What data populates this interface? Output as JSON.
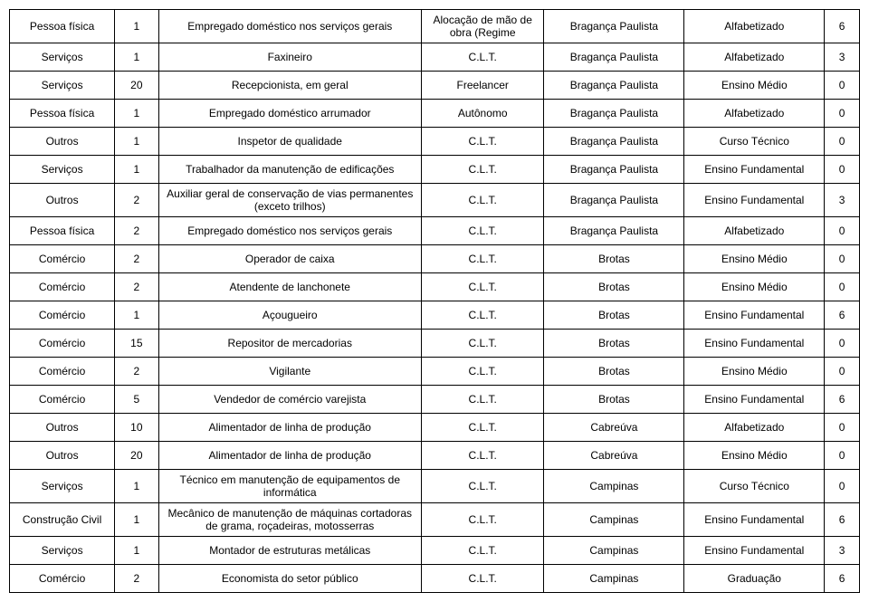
{
  "rows": [
    {
      "c0": "Pessoa física",
      "c1": "1",
      "c2": "Empregado doméstico nos serviços gerais",
      "c3": "Alocação de mão de obra (Regime",
      "c4": "Bragança Paulista",
      "c5": "Alfabetizado",
      "c6": "6"
    },
    {
      "c0": "Serviços",
      "c1": "1",
      "c2": "Faxineiro",
      "c3": "C.L.T.",
      "c4": "Bragança Paulista",
      "c5": "Alfabetizado",
      "c6": "3"
    },
    {
      "c0": "Serviços",
      "c1": "20",
      "c2": "Recepcionista, em geral",
      "c3": "Freelancer",
      "c4": "Bragança Paulista",
      "c5": "Ensino Médio",
      "c6": "0"
    },
    {
      "c0": "Pessoa física",
      "c1": "1",
      "c2": "Empregado doméstico arrumador",
      "c3": "Autônomo",
      "c4": "Bragança Paulista",
      "c5": "Alfabetizado",
      "c6": "0"
    },
    {
      "c0": "Outros",
      "c1": "1",
      "c2": "Inspetor de qualidade",
      "c3": "C.L.T.",
      "c4": "Bragança Paulista",
      "c5": "Curso Técnico",
      "c6": "0"
    },
    {
      "c0": "Serviços",
      "c1": "1",
      "c2": "Trabalhador da manutenção de edificações",
      "c3": "C.L.T.",
      "c4": "Bragança Paulista",
      "c5": "Ensino Fundamental",
      "c6": "0"
    },
    {
      "c0": "Outros",
      "c1": "2",
      "c2": "Auxiliar geral de conservação de vias permanentes (exceto trilhos)",
      "c3": "C.L.T.",
      "c4": "Bragança Paulista",
      "c5": "Ensino Fundamental",
      "c6": "3"
    },
    {
      "c0": "Pessoa física",
      "c1": "2",
      "c2": "Empregado doméstico nos serviços gerais",
      "c3": "C.L.T.",
      "c4": "Bragança Paulista",
      "c5": "Alfabetizado",
      "c6": "0"
    },
    {
      "c0": "Comércio",
      "c1": "2",
      "c2": "Operador de caixa",
      "c3": "C.L.T.",
      "c4": "Brotas",
      "c5": "Ensino Médio",
      "c6": "0"
    },
    {
      "c0": "Comércio",
      "c1": "2",
      "c2": "Atendente de lanchonete",
      "c3": "C.L.T.",
      "c4": "Brotas",
      "c5": "Ensino Médio",
      "c6": "0"
    },
    {
      "c0": "Comércio",
      "c1": "1",
      "c2": "Açougueiro",
      "c3": "C.L.T.",
      "c4": "Brotas",
      "c5": "Ensino Fundamental",
      "c6": "6"
    },
    {
      "c0": "Comércio",
      "c1": "15",
      "c2": "Repositor de mercadorias",
      "c3": "C.L.T.",
      "c4": "Brotas",
      "c5": "Ensino Fundamental",
      "c6": "0"
    },
    {
      "c0": "Comércio",
      "c1": "2",
      "c2": "Vigilante",
      "c3": "C.L.T.",
      "c4": "Brotas",
      "c5": "Ensino Médio",
      "c6": "0"
    },
    {
      "c0": "Comércio",
      "c1": "5",
      "c2": "Vendedor de comércio varejista",
      "c3": "C.L.T.",
      "c4": "Brotas",
      "c5": "Ensino Fundamental",
      "c6": "6"
    },
    {
      "c0": "Outros",
      "c1": "10",
      "c2": "Alimentador de linha de produção",
      "c3": "C.L.T.",
      "c4": "Cabreúva",
      "c5": "Alfabetizado",
      "c6": "0"
    },
    {
      "c0": "Outros",
      "c1": "20",
      "c2": "Alimentador de linha de produção",
      "c3": "C.L.T.",
      "c4": "Cabreúva",
      "c5": "Ensino Médio",
      "c6": "0"
    },
    {
      "c0": "Serviços",
      "c1": "1",
      "c2": "Técnico em manutenção de equipamentos de informática",
      "c3": "C.L.T.",
      "c4": "Campinas",
      "c5": "Curso Técnico",
      "c6": "0"
    },
    {
      "c0": "Construção Civil",
      "c1": "1",
      "c2": "Mecânico de manutenção de máquinas cortadoras de grama, roçadeiras, motosserras",
      "c3": "C.L.T.",
      "c4": "Campinas",
      "c5": "Ensino Fundamental",
      "c6": "6"
    },
    {
      "c0": "Serviços",
      "c1": "1",
      "c2": "Montador de estruturas metálicas",
      "c3": "C.L.T.",
      "c4": "Campinas",
      "c5": "Ensino Fundamental",
      "c6": "3"
    },
    {
      "c0": "Comércio",
      "c1": "2",
      "c2": "Economista do setor público",
      "c3": "C.L.T.",
      "c4": "Campinas",
      "c5": "Graduação",
      "c6": "6"
    }
  ]
}
